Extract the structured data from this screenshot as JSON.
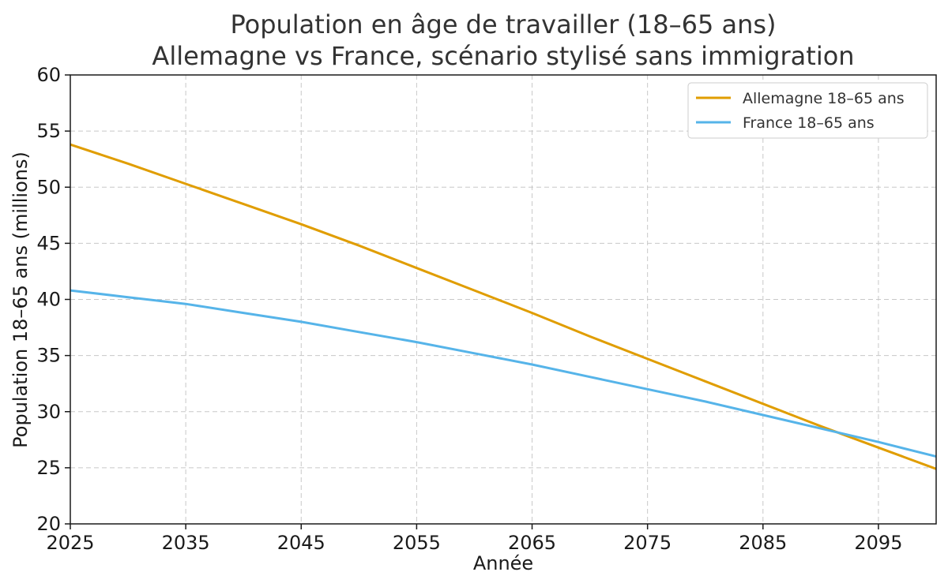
{
  "chart_data": {
    "type": "line",
    "title": [
      "Population en âge de travailler (18–65 ans)",
      "Allemagne vs France, scénario stylisé sans immigration"
    ],
    "xlabel": "Année",
    "ylabel": "Population 18–65 ans (millions)",
    "xlim": [
      2025,
      2100
    ],
    "ylim": [
      20,
      60
    ],
    "xticks": [
      2025,
      2035,
      2045,
      2055,
      2065,
      2075,
      2085,
      2095
    ],
    "yticks": [
      20,
      25,
      30,
      35,
      40,
      45,
      50,
      55,
      60
    ],
    "grid": true,
    "legend_position": "top-right",
    "series": [
      {
        "name": "Allemagne 18–65 ans",
        "color": "#e09d00",
        "x": [
          2025,
          2030,
          2035,
          2040,
          2045,
          2050,
          2055,
          2060,
          2065,
          2070,
          2075,
          2080,
          2085,
          2090,
          2095,
          2100
        ],
        "values": [
          53.8,
          52.1,
          50.3,
          48.5,
          46.7,
          44.8,
          42.8,
          40.8,
          38.8,
          36.7,
          34.7,
          32.7,
          30.7,
          28.7,
          26.8,
          24.9
        ]
      },
      {
        "name": "France 18–65 ans",
        "color": "#56b4e9",
        "x": [
          2025,
          2030,
          2035,
          2040,
          2045,
          2050,
          2055,
          2060,
          2065,
          2070,
          2075,
          2080,
          2085,
          2090,
          2095,
          2100
        ],
        "values": [
          40.8,
          40.2,
          39.6,
          38.8,
          38.0,
          37.1,
          36.2,
          35.2,
          34.2,
          33.1,
          32.0,
          30.9,
          29.7,
          28.5,
          27.3,
          26.0
        ]
      }
    ]
  }
}
